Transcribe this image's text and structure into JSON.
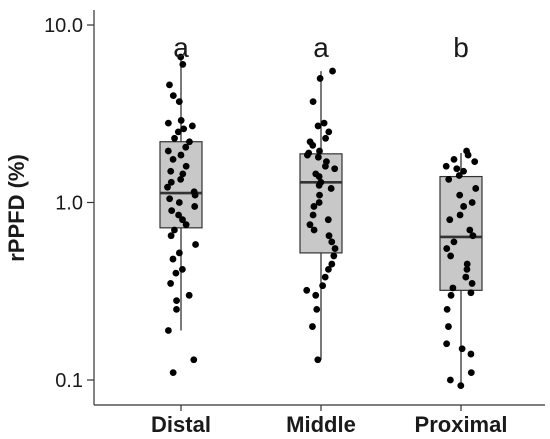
{
  "chart_data": {
    "type": "box",
    "ylabel": "rPPFD (%)",
    "xlabel": "",
    "yscale": "log",
    "ylim": [
      0.08,
      12
    ],
    "yticks": [
      {
        "value": 0.1,
        "label": "0.1"
      },
      {
        "value": 1.0,
        "label": "1.0"
      },
      {
        "value": 10.0,
        "label": "10.0"
      }
    ],
    "box_fill": "#c8c8c8",
    "point_color": "#000000",
    "categories": [
      "Distal",
      "Middle",
      "Proximal"
    ],
    "significance": [
      "a",
      "a",
      "b"
    ],
    "boxes": [
      {
        "min": 0.19,
        "q1": 0.72,
        "median": 1.13,
        "q3": 2.2,
        "max": 6.5
      },
      {
        "min": 0.13,
        "q1": 0.52,
        "median": 1.3,
        "q3": 1.88,
        "max": 5.5
      },
      {
        "min": 0.093,
        "q1": 0.32,
        "median": 0.64,
        "q3": 1.4,
        "max": 1.9
      }
    ],
    "points": [
      [
        6.6,
        6.0,
        4.6,
        4.0,
        3.7,
        2.9,
        2.8,
        2.7,
        2.6,
        2.5,
        2.3,
        2.2,
        2.05,
        1.95,
        1.85,
        1.75,
        1.6,
        1.5,
        1.45,
        1.35,
        1.3,
        1.22,
        1.15,
        1.1,
        1.05,
        1.0,
        0.95,
        0.9,
        0.85,
        0.8,
        0.75,
        0.7,
        0.65,
        0.58,
        0.52,
        0.48,
        0.42,
        0.4,
        0.35,
        0.3,
        0.28,
        0.25,
        0.19,
        0.13,
        0.11
      ],
      [
        5.5,
        5.0,
        3.7,
        2.8,
        2.7,
        2.5,
        2.3,
        2.2,
        2.1,
        1.95,
        1.9,
        1.85,
        1.8,
        1.7,
        1.6,
        1.55,
        1.45,
        1.4,
        1.3,
        1.25,
        1.2,
        1.1,
        1.0,
        0.95,
        0.85,
        0.8,
        0.75,
        0.7,
        0.65,
        0.6,
        0.55,
        0.5,
        0.45,
        0.42,
        0.38,
        0.34,
        0.32,
        0.3,
        0.25,
        0.2,
        0.13
      ],
      [
        1.95,
        1.85,
        1.75,
        1.7,
        1.6,
        1.55,
        1.5,
        1.42,
        1.35,
        1.2,
        1.1,
        1.0,
        0.95,
        0.85,
        0.8,
        0.7,
        0.65,
        0.6,
        0.55,
        0.5,
        0.45,
        0.42,
        0.38,
        0.35,
        0.33,
        0.31,
        0.3,
        0.25,
        0.2,
        0.16,
        0.15,
        0.14,
        0.11,
        0.1,
        0.093
      ]
    ]
  }
}
